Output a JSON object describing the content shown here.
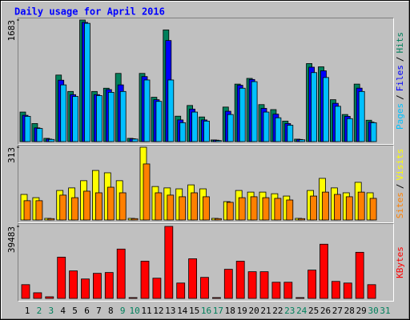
{
  "chart_data": [
    {
      "type": "bar",
      "title": "Daily usage for April 2016",
      "legend_separator": "/",
      "ylim": [
        0,
        1683
      ],
      "yticks": [
        1683
      ],
      "series": [
        {
          "name": "Pages",
          "color": "#00c0ff",
          "values": [
            350,
            182,
            30,
            785,
            625,
            1637,
            637,
            682,
            694,
            35,
            853,
            557,
            853,
            262,
            409,
            284,
            15,
            375,
            739,
            830,
            409,
            330,
            227,
            25,
            955,
            887,
            489,
            318,
            694,
            262,
            0
          ]
        },
        {
          "name": "Files",
          "color": "#0000ff",
          "values": [
            364,
            190,
            35,
            850,
            650,
            1650,
            650,
            720,
            785,
            40,
            900,
            580,
            1399,
            300,
            450,
            300,
            20,
            420,
            780,
            860,
            460,
            380,
            250,
            30,
            1030,
            980,
            530,
            350,
            740,
            270,
            0
          ]
        },
        {
          "name": "Hits",
          "color": "#00805c",
          "values": [
            409,
            250,
            45,
            921,
            694,
            1683,
            694,
            739,
            944,
            45,
            944,
            614,
            1546,
            352,
            500,
            341,
            23,
            478,
            796,
            875,
            512,
            443,
            284,
            34,
            1080,
            1035,
            580,
            375,
            796,
            296,
            0
          ]
        }
      ]
    },
    {
      "type": "bar",
      "legend_separator": "/",
      "ylim": [
        0,
        313
      ],
      "yticks": [
        313
      ],
      "series": [
        {
          "name": "Sites",
          "color": "#ff8000",
          "values": [
            83,
            83,
            6,
            107,
            96,
            124,
            117,
            141,
            117,
            6,
            241,
            117,
            107,
            100,
            117,
            100,
            6,
            76,
            96,
            100,
            96,
            93,
            86,
            6,
            103,
            120,
            110,
            100,
            120,
            93,
            0
          ]
        },
        {
          "name": "Visits",
          "color": "#ffff00",
          "values": [
            110,
            96,
            7,
            127,
            138,
            169,
            213,
            203,
            169,
            7,
            313,
            144,
            138,
            134,
            151,
            134,
            7,
            79,
            127,
            120,
            120,
            113,
            103,
            7,
            127,
            179,
            138,
            117,
            162,
            117,
            0
          ]
        }
      ]
    },
    {
      "type": "bar",
      "ylim": [
        0,
        39483
      ],
      "yticks": [
        39483
      ],
      "series": [
        {
          "name": "KBytes",
          "color": "#ff0000",
          "values": [
            7540,
            3100,
            890,
            22620,
            15080,
            10650,
            13750,
            14200,
            27060,
            440,
            20400,
            11090,
            39483,
            8430,
            21740,
            11530,
            440,
            15970,
            20400,
            14640,
            14640,
            8870,
            8870,
            440,
            15530,
            29720,
            9320,
            8430,
            25290,
            7540,
            0
          ]
        }
      ],
      "categories": [
        "1",
        "2",
        "3",
        "4",
        "5",
        "6",
        "7",
        "8",
        "9",
        "10",
        "11",
        "12",
        "13",
        "14",
        "15",
        "16",
        "17",
        "18",
        "19",
        "20",
        "21",
        "22",
        "23",
        "24",
        "25",
        "26",
        "27",
        "28",
        "29",
        "30",
        "31"
      ],
      "category_colors": [
        "#000000",
        "#00805c",
        "#00805c",
        "#000000",
        "#000000",
        "#000000",
        "#000000",
        "#000000",
        "#00805c",
        "#00805c",
        "#000000",
        "#000000",
        "#000000",
        "#000000",
        "#000000",
        "#00805c",
        "#00805c",
        "#000000",
        "#000000",
        "#000000",
        "#000000",
        "#000000",
        "#00805c",
        "#00805c",
        "#000000",
        "#000000",
        "#000000",
        "#000000",
        "#000000",
        "#00805c",
        "#00805c"
      ]
    }
  ]
}
